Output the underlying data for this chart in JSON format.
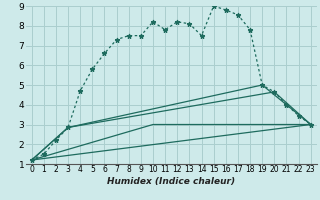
{
  "xlabel": "Humidex (Indice chaleur)",
  "bg_color": "#ceeaea",
  "grid_color": "#aacece",
  "line_color": "#1e6b5e",
  "xlim": [
    -0.5,
    23.5
  ],
  "ylim": [
    1,
    9
  ],
  "xticks": [
    0,
    1,
    2,
    3,
    4,
    5,
    6,
    7,
    8,
    9,
    10,
    11,
    12,
    13,
    14,
    15,
    16,
    17,
    18,
    19,
    20,
    21,
    22,
    23
  ],
  "yticks": [
    1,
    2,
    3,
    4,
    5,
    6,
    7,
    8,
    9
  ],
  "curve_x": [
    0,
    1,
    2,
    3,
    4,
    5,
    6,
    7,
    8,
    9,
    10,
    11,
    12,
    13,
    14,
    15,
    16,
    17,
    18,
    19,
    20,
    21,
    22,
    23
  ],
  "curve_y": [
    1.2,
    1.5,
    2.2,
    2.85,
    4.7,
    5.8,
    6.6,
    7.3,
    7.5,
    7.5,
    8.2,
    7.8,
    8.2,
    8.1,
    7.5,
    9.0,
    8.8,
    8.55,
    7.8,
    5.0,
    4.65,
    4.0,
    3.45,
    3.0
  ],
  "line1_x": [
    0,
    23
  ],
  "line1_y": [
    1.2,
    3.0
  ],
  "line2_x": [
    0,
    10,
    23
  ],
  "line2_y": [
    1.2,
    3.0,
    3.0
  ],
  "line3_x": [
    0,
    3,
    19,
    23
  ],
  "line3_y": [
    1.2,
    2.85,
    5.0,
    3.0
  ],
  "line4_x": [
    0,
    3,
    20,
    23
  ],
  "line4_y": [
    1.2,
    2.85,
    4.65,
    3.0
  ]
}
